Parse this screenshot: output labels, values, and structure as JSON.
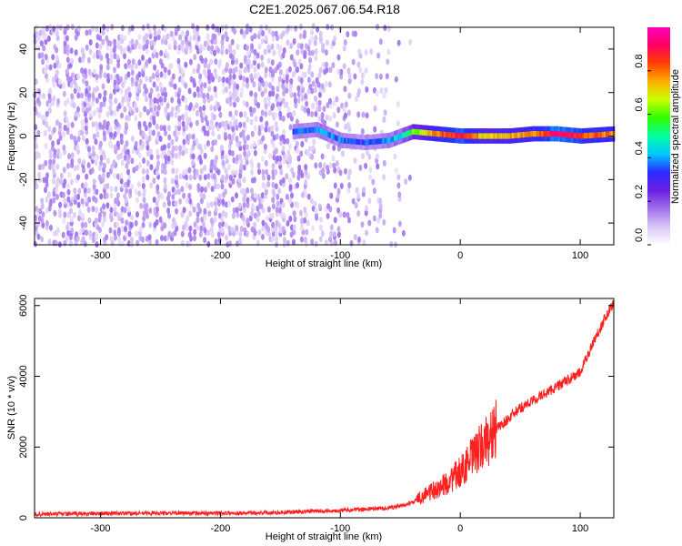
{
  "title": "C2E1.2025.067.06.54.R18",
  "chart_data": [
    {
      "type": "heatmap",
      "xlabel": "Height of straight line (km)",
      "ylabel": "Frequency (Hz)",
      "xlim": [
        -355,
        128
      ],
      "ylim": [
        -50,
        50
      ],
      "xticks": [
        -300,
        -200,
        -100,
        0,
        100
      ],
      "yticks": [
        -40,
        -20,
        0,
        20,
        40
      ],
      "colorbar": {
        "label": "Normalized spectral amplitude",
        "range": [
          0.0,
          1.0
        ],
        "ticks": [
          "0.0",
          "0.2",
          "0.4",
          "0.6",
          "0.8"
        ],
        "colormap": [
          "#ffffff",
          "#d9c6f5",
          "#a070ee",
          "#6a1fe3",
          "#2b2bff",
          "#00c8ff",
          "#00ffa0",
          "#30ff00",
          "#c8ff00",
          "#ffb000",
          "#ff4000",
          "#ff0060",
          "#ff00c0"
        ]
      },
      "noise_region": {
        "x_range": [
          -355,
          -40
        ],
        "y_range": [
          -50,
          50
        ],
        "amplitude": 0.15
      },
      "ridge": [
        {
          "x": -140,
          "freq": 2,
          "amp": 0.35
        },
        {
          "x": -120,
          "freq": 3,
          "amp": 0.4
        },
        {
          "x": -100,
          "freq": -2,
          "amp": 0.38
        },
        {
          "x": -80,
          "freq": -3,
          "amp": 0.35
        },
        {
          "x": -60,
          "freq": -2,
          "amp": 0.4
        },
        {
          "x": -50,
          "freq": 0,
          "amp": 0.45
        },
        {
          "x": -40,
          "freq": 2,
          "amp": 0.6
        },
        {
          "x": -20,
          "freq": 1,
          "amp": 0.8
        },
        {
          "x": 0,
          "freq": 0,
          "amp": 0.9
        },
        {
          "x": 20,
          "freq": 0,
          "amp": 0.7
        },
        {
          "x": 40,
          "freq": 0,
          "amp": 0.75
        },
        {
          "x": 60,
          "freq": 1,
          "amp": 0.75
        },
        {
          "x": 80,
          "freq": 1,
          "amp": 0.95
        },
        {
          "x": 100,
          "freq": 0,
          "amp": 0.85
        },
        {
          "x": 128,
          "freq": 1,
          "amp": 0.75
        }
      ]
    },
    {
      "type": "line",
      "xlabel": "Height of straight line (km)",
      "ylabel": "SNR (10 * v/v)",
      "xlim": [
        -355,
        128
      ],
      "ylim": [
        0,
        6200
      ],
      "xticks": [
        -300,
        -200,
        -100,
        0,
        100
      ],
      "yticks": [
        0,
        2000,
        4000,
        6000
      ],
      "series": [
        {
          "color": "#ff2020",
          "x": [
            -355,
            -300,
            -250,
            -200,
            -150,
            -120,
            -100,
            -80,
            -60,
            -50,
            -40,
            -30,
            -20,
            -10,
            0,
            10,
            20,
            30,
            40,
            50,
            60,
            70,
            80,
            90,
            100,
            110,
            120,
            128
          ],
          "y": [
            100,
            120,
            130,
            130,
            150,
            190,
            210,
            240,
            280,
            330,
            420,
            650,
            800,
            1000,
            1300,
            1700,
            2100,
            2500,
            2800,
            3100,
            3300,
            3500,
            3700,
            3900,
            4100,
            4900,
            5600,
            6100
          ]
        }
      ]
    }
  ]
}
